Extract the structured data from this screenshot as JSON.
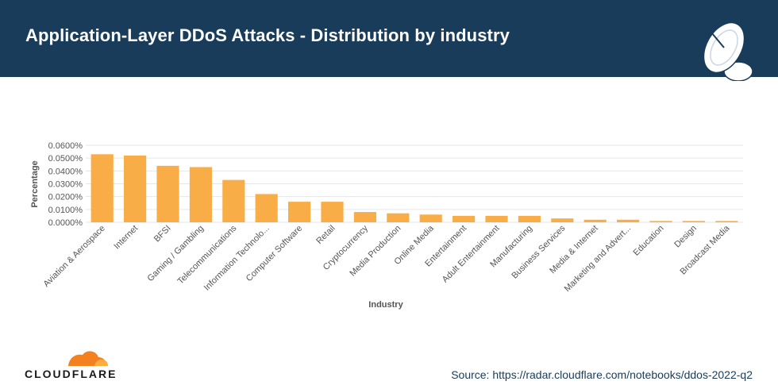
{
  "header": {
    "title": "Application-Layer DDoS Attacks - Distribution by industry",
    "bg_color": "#183c5a",
    "icon": "satellite-dish-icon"
  },
  "footer": {
    "logo_text": "CLOUDFLARE",
    "logo_icon": "cloudflare-cloud-icon",
    "source": "Source: https://radar.cloudflare.com/notebooks/ddos-2022-q2"
  },
  "chart_data": {
    "type": "bar",
    "xlabel": "Industry",
    "ylabel": "Percentage",
    "ylim": [
      0,
      0.06
    ],
    "yticks": [
      "0.0000%",
      "0.0100%",
      "0.0200%",
      "0.0300%",
      "0.0400%",
      "0.0500%",
      "0.0600%"
    ],
    "grid": true,
    "bar_color": "#f8ad46",
    "categories": [
      "Aviation & Aerospace",
      "Internet",
      "BFSI",
      "Gaming / Gambling",
      "Telecommunications",
      "Information Technolo...",
      "Computer Software",
      "Retail",
      "Cryptocurrency",
      "Media Production",
      "Online Media",
      "Entertainment",
      "Adult Entertainment",
      "Manufacturing",
      "Business Services",
      "Media & Internet",
      "Marketing and Advert...",
      "Education",
      "Design",
      "Broadcast Media"
    ],
    "values": [
      0.053,
      0.052,
      0.044,
      0.043,
      0.033,
      0.022,
      0.016,
      0.016,
      0.008,
      0.007,
      0.006,
      0.005,
      0.005,
      0.005,
      0.003,
      0.002,
      0.002,
      0.001,
      0.001,
      0.001
    ]
  }
}
